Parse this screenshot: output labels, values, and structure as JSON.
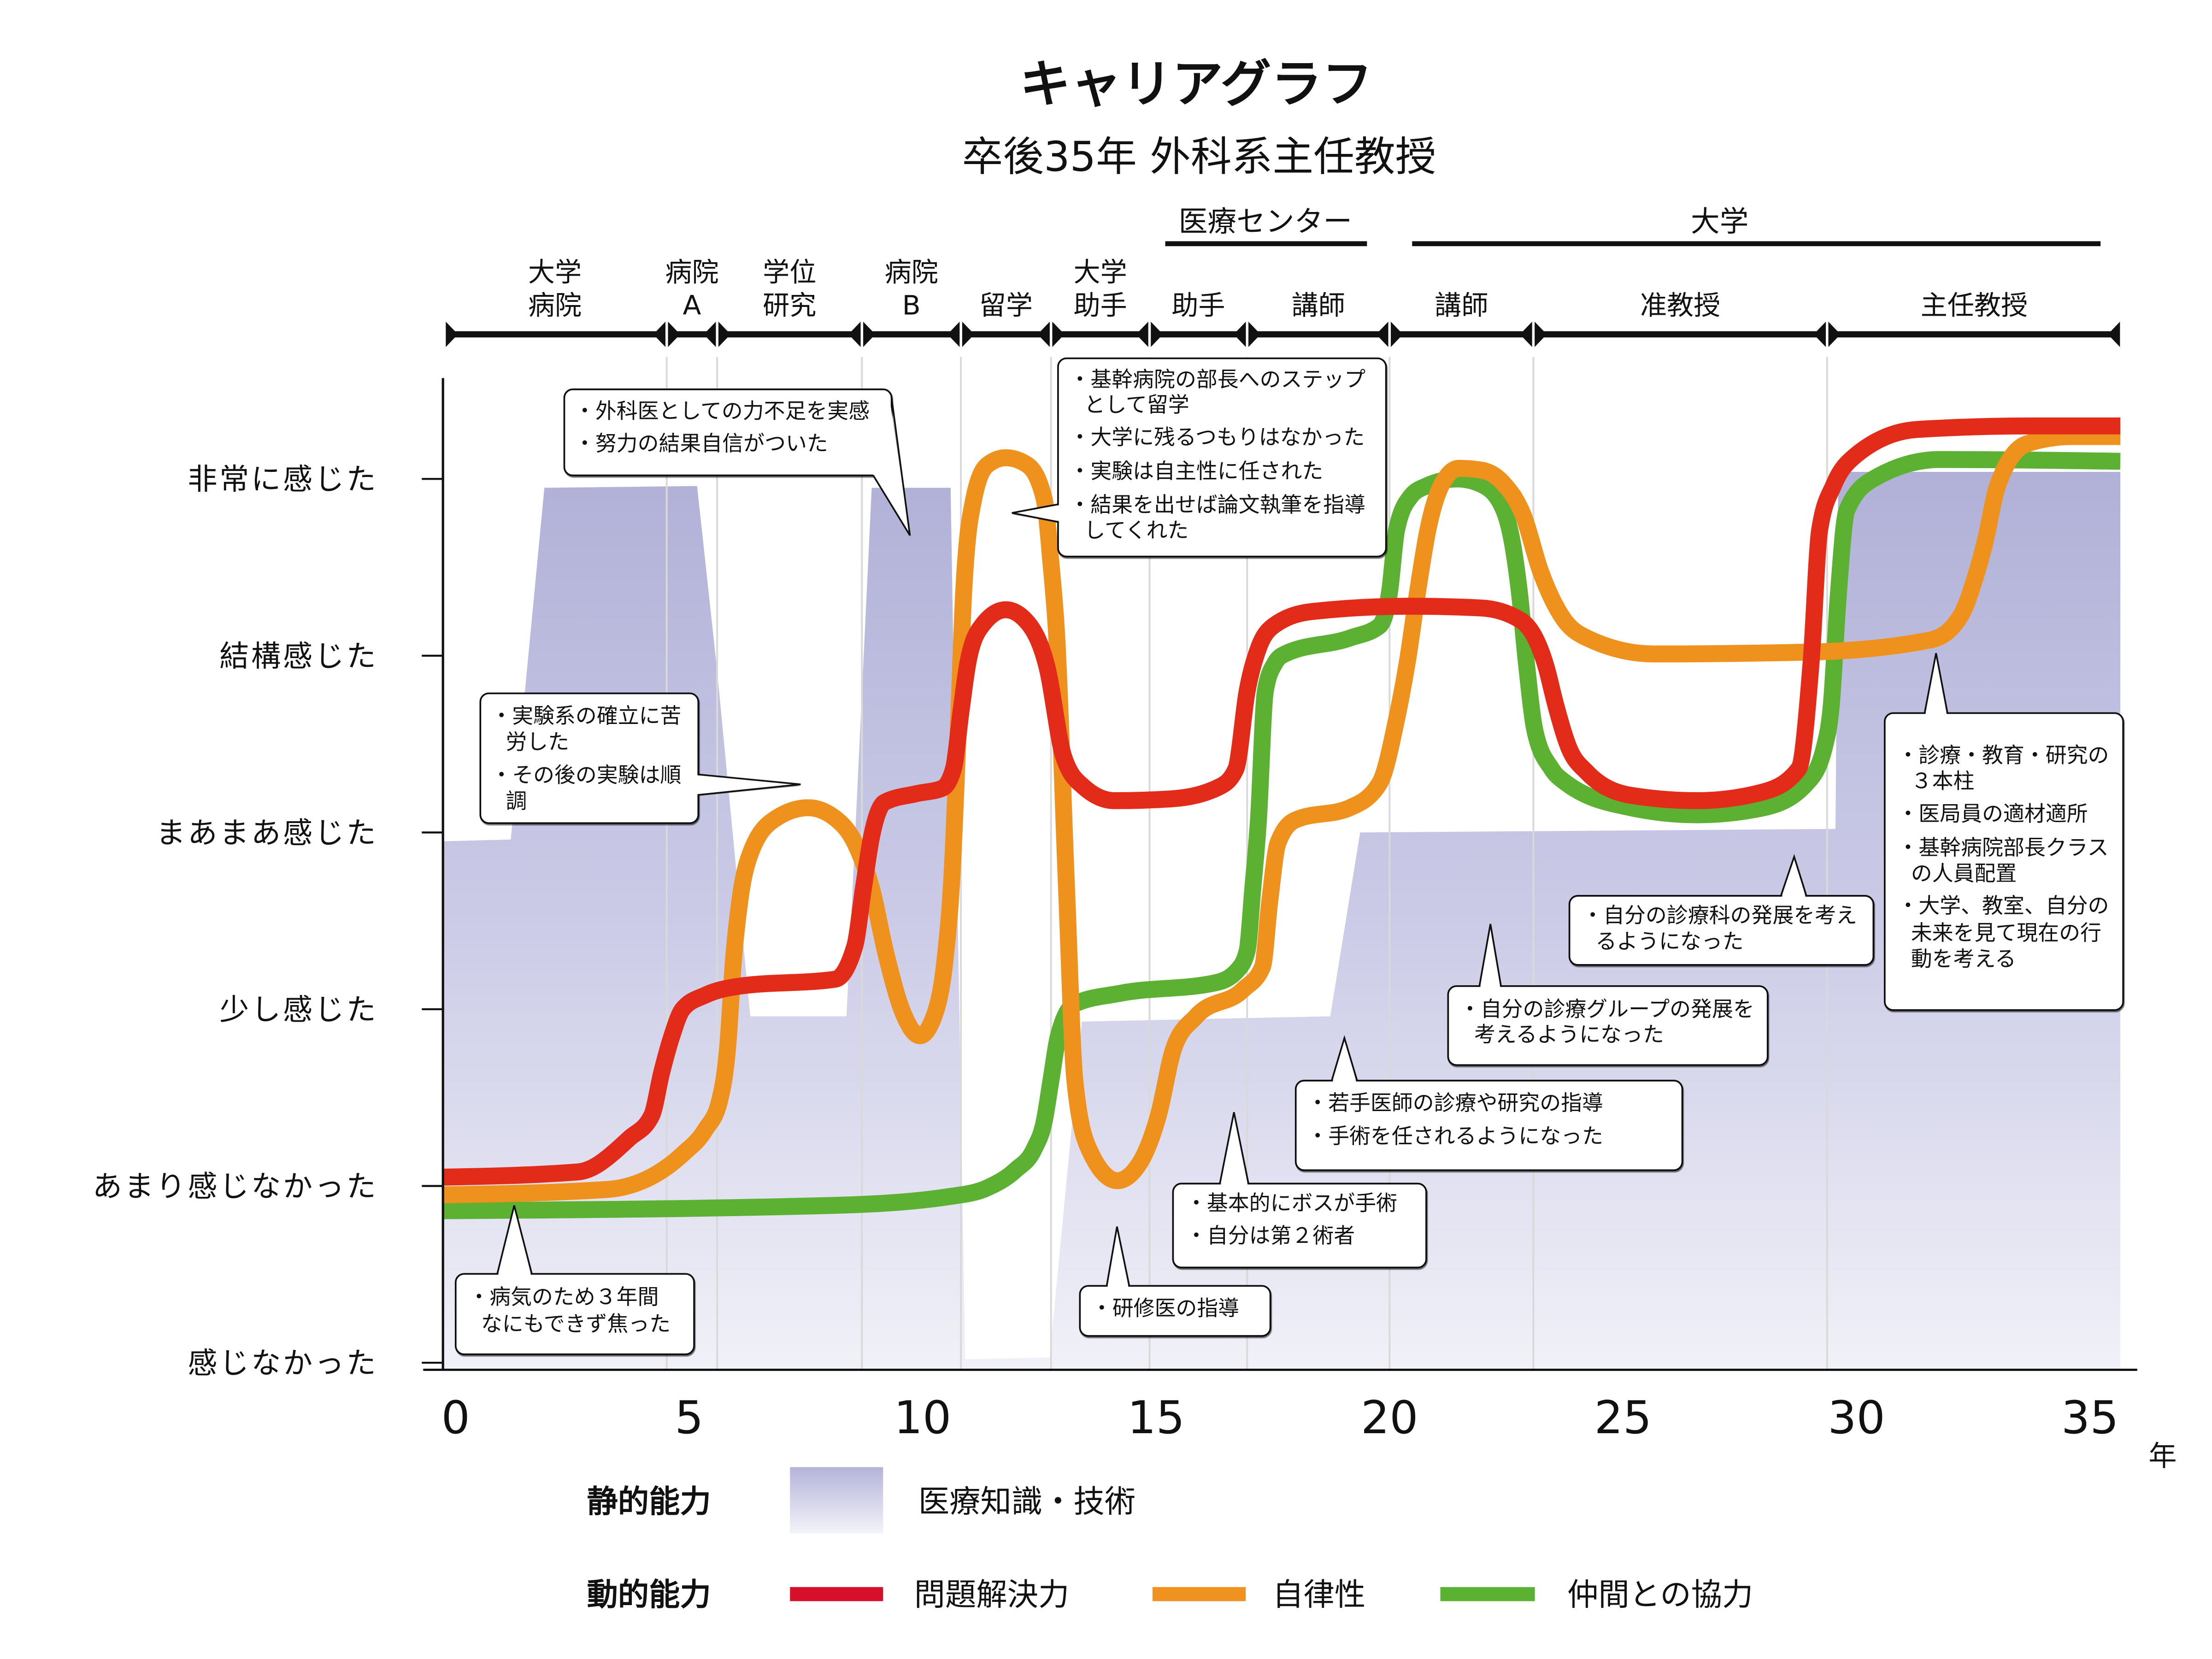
{
  "chart_data": {
    "type": "line",
    "title": "キャリアグラフ",
    "subtitle": "卒後35年 外科系主任教授",
    "xlabel": "年",
    "ylabel": "",
    "x_ticks": [
      0,
      5,
      10,
      15,
      20,
      25,
      30,
      35
    ],
    "xlim": [
      0,
      35.7
    ],
    "ylim": [
      0,
      5
    ],
    "grid": {
      "x": "career stage boundaries",
      "y": false
    },
    "legend_position": "bottom",
    "y_levels": [
      {
        "value": 5,
        "label": "非常に感じた"
      },
      {
        "value": 4,
        "label": "結構感じた"
      },
      {
        "value": 3,
        "label": "まあまあ感じた"
      },
      {
        "value": 2,
        "label": "少し感じた"
      },
      {
        "value": 1,
        "label": "あまり感じなかった"
      },
      {
        "value": 0,
        "label": "感じなかった"
      }
    ],
    "org_groups": [
      {
        "label": "医療センター"
      },
      {
        "label": "大学"
      }
    ],
    "timeline": {
      "segments": [
        {
          "lines": [
            "大学",
            "病院"
          ],
          "start": 0,
          "end": 4.52
        },
        {
          "lines": [
            "病院",
            "A"
          ],
          "start": 4.52,
          "end": 5.6
        },
        {
          "lines": [
            "学位",
            "研究"
          ],
          "start": 5.6,
          "end": 8.7
        },
        {
          "lines": [
            "病院",
            "B"
          ],
          "start": 8.7,
          "end": 10.82
        },
        {
          "lines": [
            "留学"
          ],
          "start": 10.82,
          "end": 12.75
        },
        {
          "lines": [
            "大学",
            "助手"
          ],
          "start": 12.75,
          "end": 14.86
        },
        {
          "lines": [
            "助手"
          ],
          "start": 14.86,
          "end": 16.95
        },
        {
          "lines": [
            "講師"
          ],
          "start": 16.95,
          "end": 20.0
        },
        {
          "lines": [
            "講師"
          ],
          "start": 20.0,
          "end": 23.08
        },
        {
          "lines": [
            "准教授"
          ],
          "start": 23.08,
          "end": 29.37
        },
        {
          "lines": [
            "主任教授"
          ],
          "start": 29.37,
          "end": 35.67
        }
      ]
    },
    "legend": {
      "static": {
        "label": "静的能力",
        "items": [
          {
            "label": "医療知識・技術",
            "color": "#B4B4DA"
          }
        ]
      },
      "dynamic": {
        "label": "動的能力",
        "items": [
          {
            "label": "問題解決力",
            "color": "#D6102A"
          },
          {
            "label": "自律性",
            "color": "#EF921F"
          },
          {
            "label": "仲間との協力",
            "color": "#5BB132"
          }
        ]
      }
    },
    "area_series": {
      "name": "医療知識・技術",
      "group": "静的能力",
      "type": "area",
      "points": [
        [
          0,
          2.95
        ],
        [
          1.18,
          2.96
        ],
        [
          1.9,
          4.95
        ],
        [
          5.17,
          4.96
        ],
        [
          5.59,
          3.94
        ],
        [
          6.31,
          1.96
        ],
        [
          8.37,
          1.96
        ],
        [
          8.91,
          4.95
        ],
        [
          10.6,
          4.95
        ],
        [
          10.91,
          0.02
        ],
        [
          12.72,
          0.03
        ],
        [
          13.41,
          1.93
        ],
        [
          18.73,
          1.96
        ],
        [
          19.37,
          3.0
        ],
        [
          29.55,
          3.02
        ],
        [
          29.61,
          5.04
        ],
        [
          35.65,
          5.04
        ]
      ]
    },
    "series": [
      {
        "name": "問題解決力",
        "group": "動的能力",
        "color": "#E32B19",
        "points": [
          [
            0,
            1.05
          ],
          [
            2.63,
            1.08
          ],
          [
            3.72,
            1.27
          ],
          [
            4.2,
            1.4
          ],
          [
            4.41,
            1.64
          ],
          [
            4.62,
            1.84
          ],
          [
            4.86,
            2.0
          ],
          [
            5.35,
            2.08
          ],
          [
            6.07,
            2.13
          ],
          [
            8.13,
            2.17
          ],
          [
            8.55,
            2.36
          ],
          [
            8.73,
            2.68
          ],
          [
            8.91,
            2.98
          ],
          [
            9.18,
            3.17
          ],
          [
            9.88,
            3.22
          ],
          [
            10.42,
            3.25
          ],
          [
            10.66,
            3.36
          ],
          [
            10.82,
            3.68
          ],
          [
            10.97,
            3.96
          ],
          [
            11.27,
            4.17
          ],
          [
            11.78,
            4.26
          ],
          [
            12.24,
            4.19
          ],
          [
            12.66,
            3.94
          ],
          [
            13.02,
            3.43
          ],
          [
            13.44,
            3.26
          ],
          [
            14.11,
            3.18
          ],
          [
            15.32,
            3.19
          ],
          [
            16.37,
            3.26
          ],
          [
            16.71,
            3.36
          ],
          [
            16.95,
            3.8
          ],
          [
            17.19,
            4.04
          ],
          [
            17.52,
            4.17
          ],
          [
            18.34,
            4.25
          ],
          [
            20.45,
            4.28
          ],
          [
            21.96,
            4.27
          ],
          [
            22.81,
            4.2
          ],
          [
            23.35,
            3.94
          ],
          [
            23.56,
            3.72
          ],
          [
            23.84,
            3.48
          ],
          [
            24.23,
            3.34
          ],
          [
            25.17,
            3.21
          ],
          [
            26.59,
            3.18
          ],
          [
            28.01,
            3.23
          ],
          [
            28.76,
            3.36
          ],
          [
            29.03,
            3.97
          ],
          [
            29.21,
            4.71
          ],
          [
            29.52,
            4.97
          ],
          [
            29.88,
            5.11
          ],
          [
            31.3,
            5.28
          ],
          [
            33.75,
            5.3
          ],
          [
            35.65,
            5.3
          ]
        ]
      },
      {
        "name": "自律性",
        "group": "動的能力",
        "color": "#EF921D",
        "points": [
          [
            0,
            0.95
          ],
          [
            3.23,
            0.98
          ],
          [
            4.86,
            1.18
          ],
          [
            5.35,
            1.32
          ],
          [
            5.65,
            1.48
          ],
          [
            5.83,
            1.8
          ],
          [
            5.95,
            2.28
          ],
          [
            6.1,
            2.64
          ],
          [
            6.31,
            2.88
          ],
          [
            6.86,
            3.08
          ],
          [
            7.55,
            3.14
          ],
          [
            8.13,
            3.08
          ],
          [
            8.55,
            2.94
          ],
          [
            8.91,
            2.68
          ],
          [
            9.21,
            2.32
          ],
          [
            9.58,
            1.98
          ],
          [
            9.94,
            1.85
          ],
          [
            10.27,
            1.98
          ],
          [
            10.48,
            2.28
          ],
          [
            10.63,
            2.76
          ],
          [
            10.76,
            3.56
          ],
          [
            10.88,
            4.36
          ],
          [
            11.09,
            4.88
          ],
          [
            11.39,
            5.08
          ],
          [
            11.78,
            5.12
          ],
          [
            12.24,
            5.08
          ],
          [
            12.6,
            4.89
          ],
          [
            12.75,
            4.52
          ],
          [
            12.87,
            4.12
          ],
          [
            13.08,
            2.7
          ],
          [
            13.26,
            1.6
          ],
          [
            13.56,
            1.21
          ],
          [
            14.17,
            1.03
          ],
          [
            14.65,
            1.13
          ],
          [
            15.05,
            1.4
          ],
          [
            15.38,
            1.78
          ],
          [
            15.86,
            1.96
          ],
          [
            16.86,
            2.11
          ],
          [
            17.28,
            2.24
          ],
          [
            17.43,
            2.6
          ],
          [
            17.61,
            2.94
          ],
          [
            17.98,
            3.07
          ],
          [
            19.15,
            3.14
          ],
          [
            19.79,
            3.28
          ],
          [
            20.15,
            3.64
          ],
          [
            20.39,
            3.98
          ],
          [
            20.6,
            4.36
          ],
          [
            20.82,
            4.71
          ],
          [
            21.12,
            4.97
          ],
          [
            21.48,
            5.06
          ],
          [
            21.96,
            5.05
          ],
          [
            22.42,
            4.98
          ],
          [
            22.87,
            4.79
          ],
          [
            23.23,
            4.48
          ],
          [
            23.72,
            4.21
          ],
          [
            24.23,
            4.1
          ],
          [
            25.65,
            4.01
          ],
          [
            28.94,
            4.02
          ],
          [
            31.6,
            4.09
          ],
          [
            32.24,
            4.23
          ],
          [
            32.54,
            4.44
          ],
          [
            32.75,
            4.64
          ],
          [
            33.02,
            4.96
          ],
          [
            33.66,
            5.2
          ],
          [
            34.62,
            5.24
          ],
          [
            35.65,
            5.24
          ]
        ]
      },
      {
        "name": "仲間との協力",
        "group": "動的能力",
        "color": "#5CB133",
        "points": [
          [
            0,
            0.86
          ],
          [
            8.07,
            0.89
          ],
          [
            10.57,
            0.94
          ],
          [
            11.39,
            0.99
          ],
          [
            11.99,
            1.09
          ],
          [
            12.39,
            1.21
          ],
          [
            12.6,
            1.36
          ],
          [
            12.75,
            1.6
          ],
          [
            12.9,
            1.84
          ],
          [
            13.26,
            2.03
          ],
          [
            14.23,
            2.09
          ],
          [
            16.28,
            2.15
          ],
          [
            16.74,
            2.22
          ],
          [
            16.95,
            2.33
          ],
          [
            17.07,
            2.68
          ],
          [
            17.19,
            3.06
          ],
          [
            17.34,
            3.8
          ],
          [
            17.55,
            3.96
          ],
          [
            17.76,
            4.01
          ],
          [
            19.15,
            4.1
          ],
          [
            19.79,
            4.17
          ],
          [
            20.0,
            4.36
          ],
          [
            20.15,
            4.71
          ],
          [
            20.45,
            4.9
          ],
          [
            20.79,
            4.96
          ],
          [
            21.45,
            5.0
          ],
          [
            21.96,
            4.97
          ],
          [
            22.42,
            4.84
          ],
          [
            22.63,
            4.64
          ],
          [
            22.78,
            4.36
          ],
          [
            22.93,
            3.96
          ],
          [
            23.11,
            3.58
          ],
          [
            23.47,
            3.36
          ],
          [
            23.78,
            3.28
          ],
          [
            25.17,
            3.14
          ],
          [
            26.59,
            3.1
          ],
          [
            28.01,
            3.14
          ],
          [
            28.94,
            3.28
          ],
          [
            29.31,
            3.48
          ],
          [
            29.46,
            3.72
          ],
          [
            29.61,
            4.34
          ],
          [
            29.79,
            4.82
          ],
          [
            30.36,
            5.0
          ],
          [
            31.78,
            5.11
          ],
          [
            35.65,
            5.1
          ]
        ]
      }
    ],
    "annotations": [
      {
        "lines": [
          "・外科医としての力不足を実感",
          "・努力の結果自信がついた"
        ]
      },
      {
        "lines": [
          "・実験系の確立に苦",
          "労した",
          "・その後の実験は順",
          "調"
        ]
      },
      {
        "lines": [
          "・病気のため３年間",
          "なにもできず焦った"
        ]
      },
      {
        "lines": [
          "・基幹病院の部長へのステップ",
          "として留学",
          "・大学に残るつもりはなかった",
          "・実験は自主性に任された",
          "・結果を出せば論文執筆を指導",
          "してくれた"
        ]
      },
      {
        "lines": [
          "・研修医の指導"
        ]
      },
      {
        "lines": [
          "・基本的にボスが手術",
          "・自分は第２術者"
        ]
      },
      {
        "lines": [
          "・若手医師の診療や研究の指導",
          "・手術を任されるようになった"
        ]
      },
      {
        "lines": [
          "・自分の診療グループの発展を",
          "考えるようになった"
        ]
      },
      {
        "lines": [
          "・自分の診療科の発展を考え",
          "るようになった"
        ]
      },
      {
        "lines": [
          "・診療・教育・研究の",
          "３本柱",
          "・医局員の適材適所",
          "・基幹病院部長クラス",
          "の人員配置",
          "・大学、教室、自分の",
          "未来を見て現在の行",
          "動を考える"
        ]
      }
    ]
  }
}
